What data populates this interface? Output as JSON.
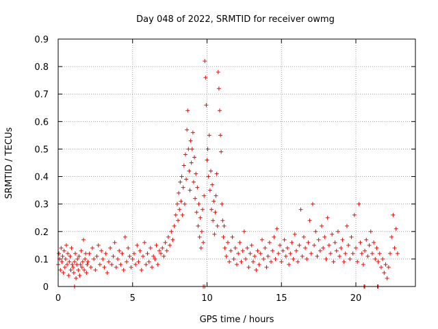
{
  "chart_data": {
    "type": "scatter",
    "title": "Day 048 of 2022, SRMTID for receiver owmg",
    "xlabel": "GPS time / hours",
    "ylabel": "SRMTID / TECUs",
    "xlim": [
      0,
      24
    ],
    "ylim": [
      0,
      0.9
    ],
    "xticks": [
      0,
      5,
      10,
      15,
      20
    ],
    "yticks": [
      0,
      0.1,
      0.2,
      0.3,
      0.4,
      0.5,
      0.6,
      0.7,
      0.8,
      0.9
    ],
    "xtick_labels": [
      "0",
      "5",
      "10",
      "15",
      "20"
    ],
    "ytick_labels": [
      "0",
      "0.1",
      "0.2",
      "0.3",
      "0.4",
      "0.5",
      "0.6",
      "0.7",
      "0.8",
      "0.9"
    ],
    "grid": true,
    "marker": "+",
    "color": "#ff0000",
    "series": [
      {
        "name": "SRMTID",
        "points": [
          [
            0.0,
            0.08
          ],
          [
            0.05,
            0.12
          ],
          [
            0.1,
            0.1
          ],
          [
            0.15,
            0.06
          ],
          [
            0.2,
            0.14
          ],
          [
            0.25,
            0.09
          ],
          [
            0.3,
            0.11
          ],
          [
            0.35,
            0.05
          ],
          [
            0.4,
            0.13
          ],
          [
            0.45,
            0.07
          ],
          [
            0.5,
            0.1
          ],
          [
            0.55,
            0.15
          ],
          [
            0.6,
            0.08
          ],
          [
            0.65,
            0.12
          ],
          [
            0.7,
            0.04
          ],
          [
            0.75,
            0.09
          ],
          [
            0.8,
            0.11
          ],
          [
            0.85,
            0.06
          ],
          [
            0.9,
            0.14
          ],
          [
            0.95,
            0.08
          ],
          [
            1.0,
            0.07
          ],
          [
            1.05,
            0.05
          ],
          [
            1.1,
            0.09
          ],
          [
            1.15,
            0.12
          ],
          [
            1.2,
            0.03
          ],
          [
            1.25,
            0.08
          ],
          [
            1.3,
            0.1
          ],
          [
            1.35,
            0.06
          ],
          [
            1.4,
            0.11
          ],
          [
            1.45,
            0.04
          ],
          [
            1.5,
            0.08
          ],
          [
            1.55,
            0.13
          ],
          [
            1.6,
            0.07
          ],
          [
            1.65,
            0.09
          ],
          [
            1.7,
            0.17
          ],
          [
            1.75,
            0.06
          ],
          [
            1.8,
            0.1
          ],
          [
            1.85,
            0.12
          ],
          [
            1.9,
            0.05
          ],
          [
            1.95,
            0.08
          ],
          [
            2.0,
            0.09
          ],
          [
            2.1,
            0.12
          ],
          [
            2.2,
            0.07
          ],
          [
            2.3,
            0.14
          ],
          [
            2.4,
            0.1
          ],
          [
            2.5,
            0.06
          ],
          [
            2.6,
            0.11
          ],
          [
            2.7,
            0.15
          ],
          [
            2.8,
            0.08
          ],
          [
            2.9,
            0.13
          ],
          [
            3.0,
            0.1
          ],
          [
            3.1,
            0.07
          ],
          [
            3.2,
            0.12
          ],
          [
            3.3,
            0.05
          ],
          [
            3.4,
            0.09
          ],
          [
            3.5,
            0.14
          ],
          [
            3.6,
            0.08
          ],
          [
            3.7,
            0.11
          ],
          [
            3.8,
            0.16
          ],
          [
            3.9,
            0.07
          ],
          [
            4.0,
            0.1
          ],
          [
            4.1,
            0.13
          ],
          [
            4.2,
            0.08
          ],
          [
            4.3,
            0.12
          ],
          [
            4.4,
            0.06
          ],
          [
            4.5,
            0.18
          ],
          [
            4.6,
            0.09
          ],
          [
            4.7,
            0.14
          ],
          [
            4.8,
            0.11
          ],
          [
            4.9,
            0.07
          ],
          [
            5.0,
            0.1
          ],
          [
            5.1,
            0.12
          ],
          [
            5.2,
            0.08
          ],
          [
            5.3,
            0.15
          ],
          [
            5.4,
            0.09
          ],
          [
            5.5,
            0.13
          ],
          [
            5.6,
            0.06
          ],
          [
            5.7,
            0.11
          ],
          [
            5.8,
            0.16
          ],
          [
            5.9,
            0.08
          ],
          [
            6.0,
            0.12
          ],
          [
            6.1,
            0.09
          ],
          [
            6.2,
            0.14
          ],
          [
            6.3,
            0.07
          ],
          [
            6.4,
            0.11
          ],
          [
            6.5,
            0.1
          ],
          [
            6.6,
            0.15
          ],
          [
            6.7,
            0.08
          ],
          [
            6.8,
            0.13
          ],
          [
            6.9,
            0.12
          ],
          [
            7.0,
            0.14
          ],
          [
            7.1,
            0.11
          ],
          [
            7.2,
            0.16
          ],
          [
            7.3,
            0.13
          ],
          [
            7.4,
            0.18
          ],
          [
            7.5,
            0.15
          ],
          [
            7.6,
            0.2
          ],
          [
            7.7,
            0.17
          ],
          [
            7.8,
            0.22
          ],
          [
            7.9,
            0.26
          ],
          [
            8.0,
            0.3
          ],
          [
            8.05,
            0.24
          ],
          [
            8.1,
            0.34
          ],
          [
            8.15,
            0.28
          ],
          [
            8.2,
            0.38
          ],
          [
            8.25,
            0.31
          ],
          [
            8.3,
            0.4
          ],
          [
            8.35,
            0.26
          ],
          [
            8.4,
            0.36
          ],
          [
            8.45,
            0.44
          ],
          [
            8.5,
            0.3
          ],
          [
            8.55,
            0.48
          ],
          [
            8.6,
            0.39
          ],
          [
            8.65,
            0.57
          ],
          [
            8.7,
            0.64
          ],
          [
            8.75,
            0.5
          ],
          [
            8.8,
            0.42
          ],
          [
            8.85,
            0.35
          ],
          [
            8.9,
            0.53
          ],
          [
            8.95,
            0.45
          ],
          [
            9.0,
            0.5
          ],
          [
            9.05,
            0.56
          ],
          [
            9.1,
            0.38
          ],
          [
            9.15,
            0.47
          ],
          [
            9.2,
            0.32
          ],
          [
            9.25,
            0.41
          ],
          [
            9.3,
            0.27
          ],
          [
            9.35,
            0.36
          ],
          [
            9.4,
            0.22
          ],
          [
            9.45,
            0.3
          ],
          [
            9.5,
            0.18
          ],
          [
            9.55,
            0.25
          ],
          [
            9.6,
            0.14
          ],
          [
            9.65,
            0.2
          ],
          [
            9.7,
            0.28
          ],
          [
            9.75,
            0.16
          ],
          [
            9.8,
            0.33
          ],
          [
            9.85,
            0.82
          ],
          [
            9.9,
            0.76
          ],
          [
            9.95,
            0.66
          ],
          [
            10.0,
            0.46
          ],
          [
            10.05,
            0.5
          ],
          [
            10.1,
            0.4
          ],
          [
            10.15,
            0.55
          ],
          [
            10.2,
            0.35
          ],
          [
            10.25,
            0.42
          ],
          [
            10.3,
            0.28
          ],
          [
            10.35,
            0.37
          ],
          [
            10.4,
            0.24
          ],
          [
            10.45,
            0.31
          ],
          [
            10.5,
            0.19
          ],
          [
            10.55,
            0.27
          ],
          [
            10.6,
            0.33
          ],
          [
            10.65,
            0.41
          ],
          [
            10.7,
            0.22
          ],
          [
            10.75,
            0.78
          ],
          [
            10.8,
            0.72
          ],
          [
            10.85,
            0.64
          ],
          [
            10.9,
            0.55
          ],
          [
            10.95,
            0.49
          ],
          [
            11.0,
            0.3
          ],
          [
            11.05,
            0.24
          ],
          [
            11.1,
            0.18
          ],
          [
            11.15,
            0.22
          ],
          [
            11.2,
            0.14
          ],
          [
            11.3,
            0.11
          ],
          [
            11.4,
            0.16
          ],
          [
            11.5,
            0.09
          ],
          [
            11.6,
            0.13
          ],
          [
            11.7,
            0.18
          ],
          [
            11.8,
            0.1
          ],
          [
            11.9,
            0.14
          ],
          [
            12.0,
            0.08
          ],
          [
            12.1,
            0.12
          ],
          [
            12.2,
            0.16
          ],
          [
            12.3,
            0.09
          ],
          [
            12.4,
            0.13
          ],
          [
            12.5,
            0.2
          ],
          [
            12.6,
            0.1
          ],
          [
            12.7,
            0.14
          ],
          [
            12.8,
            0.07
          ],
          [
            12.9,
            0.12
          ],
          [
            13.0,
            0.15
          ],
          [
            13.1,
            0.09
          ],
          [
            13.2,
            0.11
          ],
          [
            13.3,
            0.06
          ],
          [
            13.4,
            0.13
          ],
          [
            13.5,
            0.08
          ],
          [
            13.6,
            0.12
          ],
          [
            13.7,
            0.17
          ],
          [
            13.8,
            0.1
          ],
          [
            13.9,
            0.14
          ],
          [
            14.0,
            0.07
          ],
          [
            14.1,
            0.11
          ],
          [
            14.2,
            0.16
          ],
          [
            14.3,
            0.09
          ],
          [
            14.4,
            0.13
          ],
          [
            14.5,
            0.18
          ],
          [
            14.6,
            0.1
          ],
          [
            14.7,
            0.21
          ],
          [
            14.8,
            0.12
          ],
          [
            14.9,
            0.15
          ],
          [
            15.0,
            0.09
          ],
          [
            15.1,
            0.13
          ],
          [
            15.2,
            0.17
          ],
          [
            15.3,
            0.11
          ],
          [
            15.4,
            0.14
          ],
          [
            15.5,
            0.08
          ],
          [
            15.6,
            0.12
          ],
          [
            15.7,
            0.16
          ],
          [
            15.8,
            0.1
          ],
          [
            15.9,
            0.19
          ],
          [
            16.0,
            0.13
          ],
          [
            16.1,
            0.09
          ],
          [
            16.2,
            0.15
          ],
          [
            16.3,
            0.28
          ],
          [
            16.4,
            0.11
          ],
          [
            16.5,
            0.18
          ],
          [
            16.6,
            0.14
          ],
          [
            16.7,
            0.1
          ],
          [
            16.8,
            0.16
          ],
          [
            16.9,
            0.24
          ],
          [
            17.0,
            0.12
          ],
          [
            17.1,
            0.3
          ],
          [
            17.2,
            0.15
          ],
          [
            17.3,
            0.2
          ],
          [
            17.4,
            0.11
          ],
          [
            17.5,
            0.17
          ],
          [
            17.6,
            0.13
          ],
          [
            17.7,
            0.22
          ],
          [
            17.8,
            0.14
          ],
          [
            17.9,
            0.18
          ],
          [
            18.0,
            0.1
          ],
          [
            18.1,
            0.25
          ],
          [
            18.2,
            0.15
          ],
          [
            18.3,
            0.12
          ],
          [
            18.4,
            0.19
          ],
          [
            18.5,
            0.09
          ],
          [
            18.6,
            0.16
          ],
          [
            18.7,
            0.13
          ],
          [
            18.8,
            0.2
          ],
          [
            18.9,
            0.11
          ],
          [
            19.0,
            0.14
          ],
          [
            19.1,
            0.17
          ],
          [
            19.2,
            0.09
          ],
          [
            19.3,
            0.12
          ],
          [
            19.4,
            0.22
          ],
          [
            19.5,
            0.15
          ],
          [
            19.6,
            0.1
          ],
          [
            19.7,
            0.18
          ],
          [
            19.8,
            0.12
          ],
          [
            19.9,
            0.26
          ],
          [
            20.0,
            0.14
          ],
          [
            20.1,
            0.09
          ],
          [
            20.2,
            0.3
          ],
          [
            20.3,
            0.16
          ],
          [
            20.4,
            0.12
          ],
          [
            20.5,
            0.08
          ],
          [
            20.6,
            0.13
          ],
          [
            20.7,
            0.17
          ],
          [
            20.8,
            0.11
          ],
          [
            20.9,
            0.15
          ],
          [
            21.0,
            0.2
          ],
          [
            21.1,
            0.12
          ],
          [
            21.2,
            0.16
          ],
          [
            21.3,
            0.1
          ],
          [
            21.4,
            0.14
          ],
          [
            21.5,
            0.09
          ],
          [
            21.6,
            0.12
          ],
          [
            21.7,
            0.07
          ],
          [
            21.8,
            0.1
          ],
          [
            21.9,
            0.05
          ],
          [
            22.0,
            0.08
          ],
          [
            22.1,
            0.03
          ],
          [
            22.2,
            0.07
          ],
          [
            22.3,
            0.12
          ],
          [
            22.4,
            0.18
          ],
          [
            22.5,
            0.26
          ],
          [
            22.6,
            0.14
          ],
          [
            22.7,
            0.21
          ],
          [
            22.8,
            0.12
          ],
          [
            1.1,
            0.0
          ],
          [
            9.75,
            0.0
          ],
          [
            9.85,
            0.0
          ],
          [
            20.55,
            0.0
          ],
          [
            20.6,
            0.0
          ],
          [
            21.45,
            0.0
          ],
          [
            21.5,
            0.0
          ]
        ]
      }
    ]
  }
}
